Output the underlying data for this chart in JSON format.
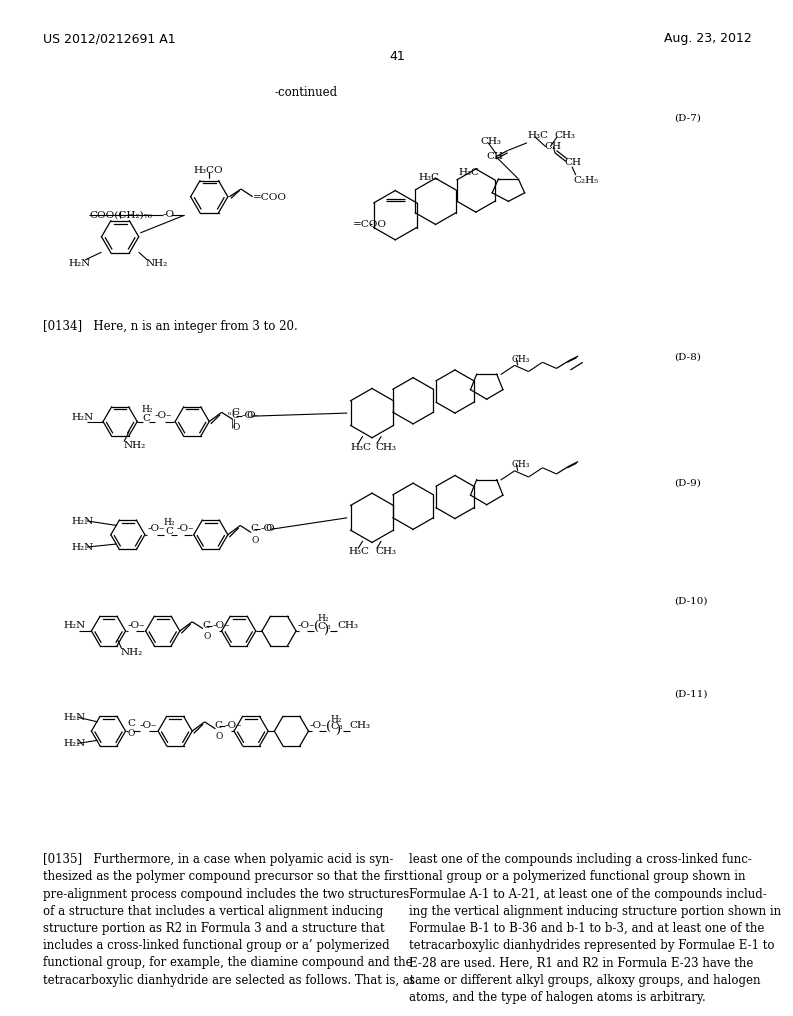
{
  "page_header_left": "US 2012/0212691 A1",
  "page_header_right": "Aug. 23, 2012",
  "page_number": "41",
  "continued_label": "-continued",
  "formula_label_d7": "(D-7)",
  "formula_label_d8": "(D-8)",
  "formula_label_d9": "(D-9)",
  "formula_label_d10": "(D-10)",
  "formula_label_d11": "(D-11)",
  "paragraph_0134": "[0134]   Here, n is an integer from 3 to 20.",
  "paragraph_0135_left": "[0135]   Furthermore, in a case when polyamic acid is syn-\nthesized as the polymer compound precursor so that the first\npre-alignment process compound includes the two structures\nof a structure that includes a vertical alignment inducing\nstructure portion as R2 in Formula 3 and a structure that\nincludes a cross-linked functional group or a’ polymerized\nfunctional group, for example, the diamine compound and the\ntetracarboxylic dianhydride are selected as follows. That is, at",
  "paragraph_0135_right": "least one of the compounds including a cross-linked func-\ntional group or a polymerized functional group shown in\nFormulae A-1 to A-21, at least one of the compounds includ-\ning the vertical alignment inducing structure portion shown in\nFormulae B-1 to B-36 and b-1 to b-3, and at least one of the\ntetracarboxylic dianhydrides represented by Formulae E-1 to\nE-28 are used. Here, R1 and R2 in Formula E-23 have the\nsame or different alkyl groups, alkoxy groups, and halogen\natoms, and the type of halogen atoms is arbitrary.",
  "bg_color": "#ffffff",
  "text_color": "#000000",
  "font_size_header": 9,
  "font_size_body": 8.5,
  "font_size_formula_label": 7.5,
  "font_size_chem": 7.5,
  "font_size_chem_small": 6.5
}
